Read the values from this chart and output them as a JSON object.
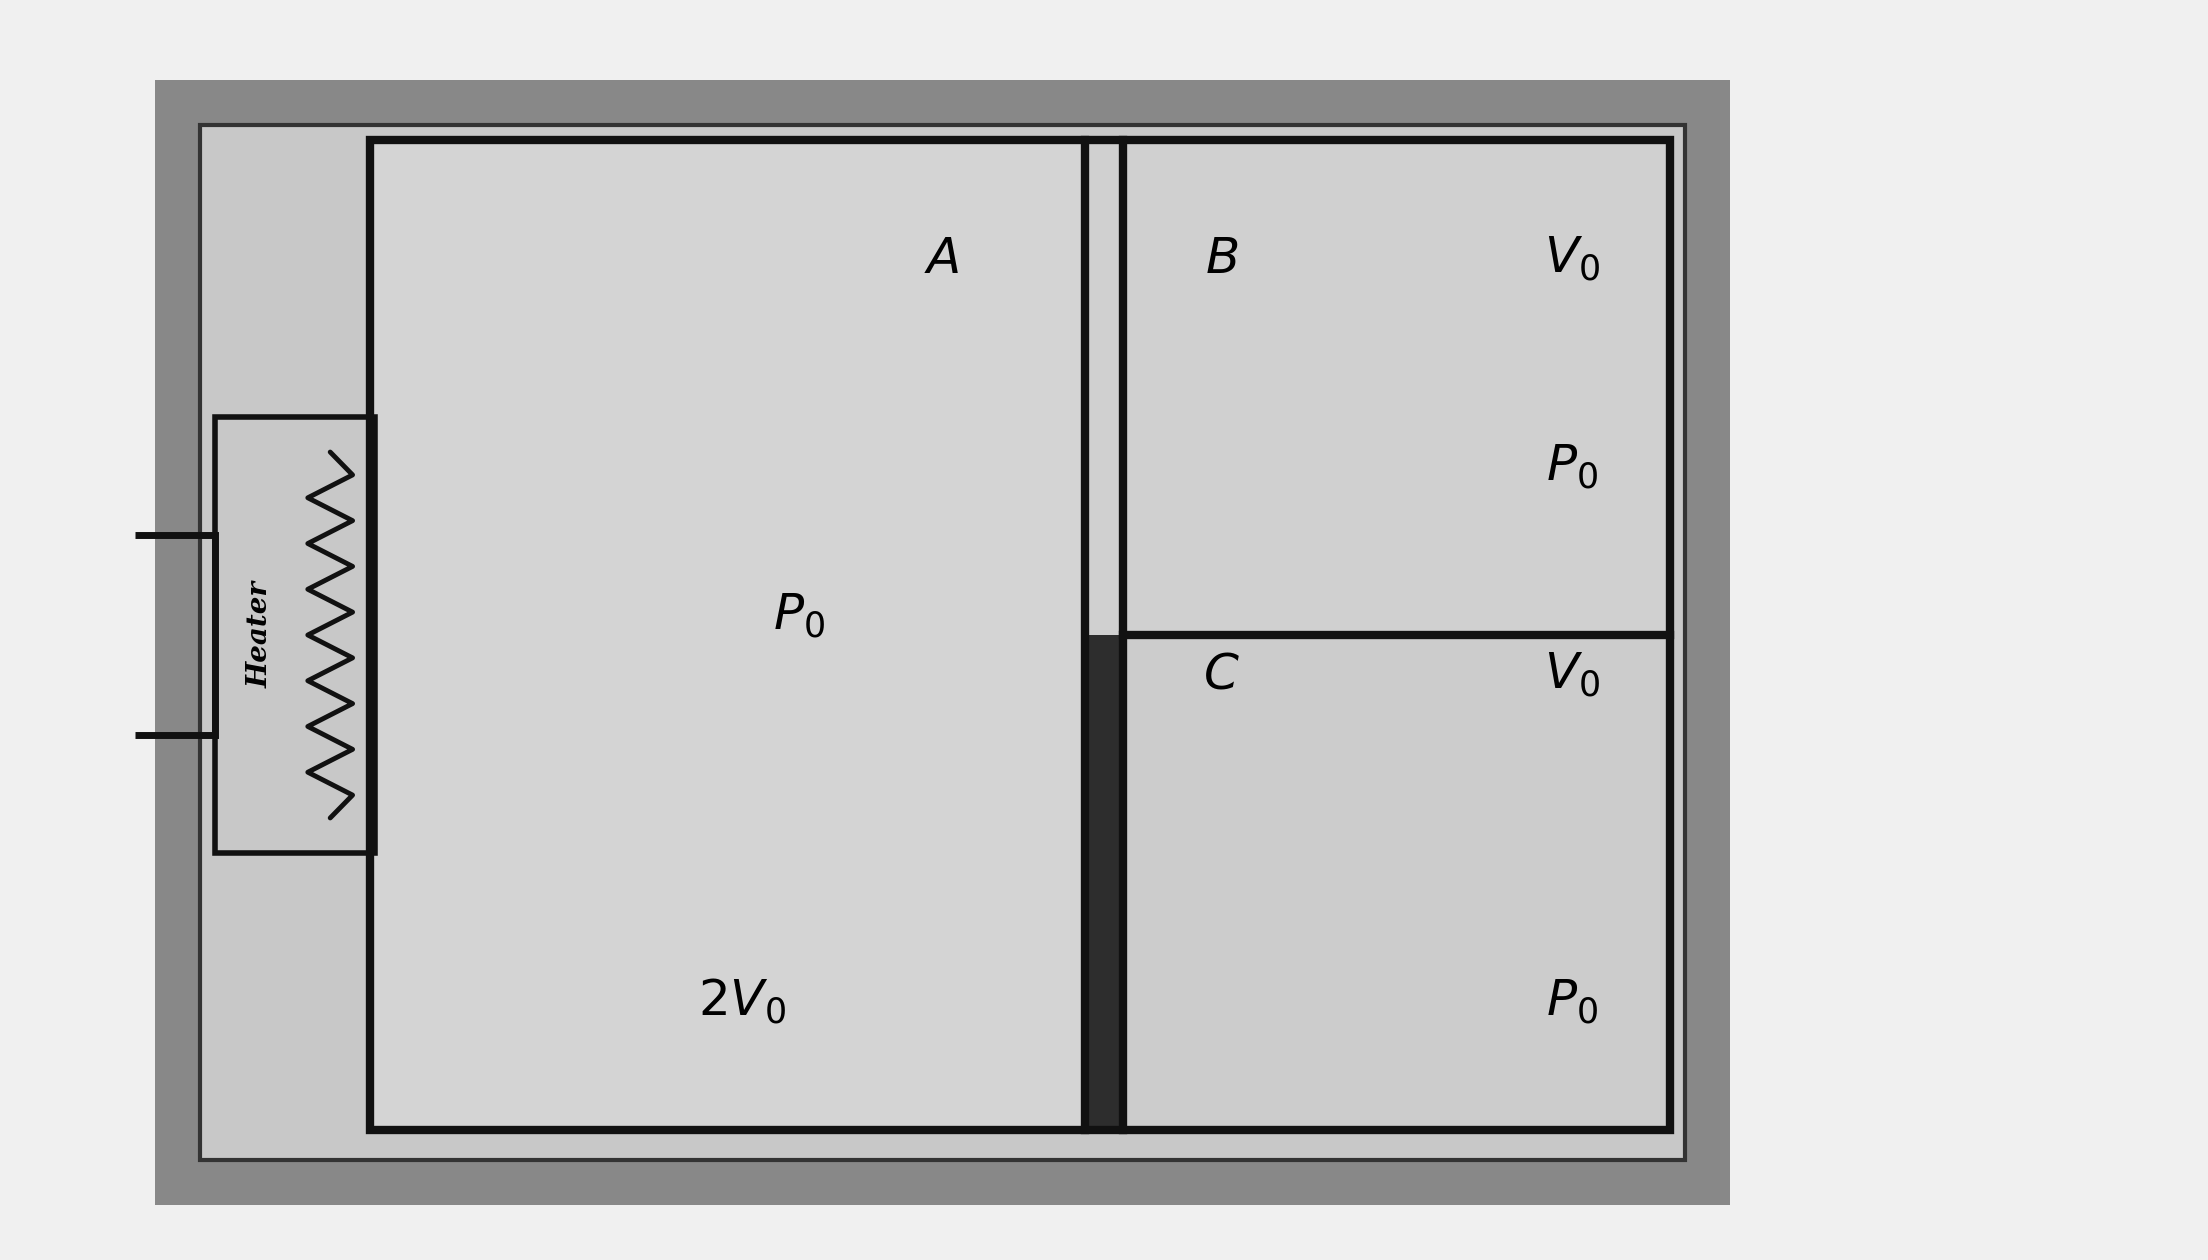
{
  "fig_width": 22.08,
  "fig_height": 12.6,
  "dpi": 100,
  "outer_bg": "#f0f0f0",
  "frame_outer_color": "#888888",
  "frame_inner_color": "#333333",
  "inner_bg": "#c8c8c8",
  "section_bg": "#d0d0d0",
  "wall_color": "#111111",
  "wall_lw": 6,
  "piston_dark": "#2a2a2a",
  "heater_wire_color": "#111111",
  "lead_line_color": "#111111",
  "font_size_main": 36,
  "heater_font_size": 20
}
